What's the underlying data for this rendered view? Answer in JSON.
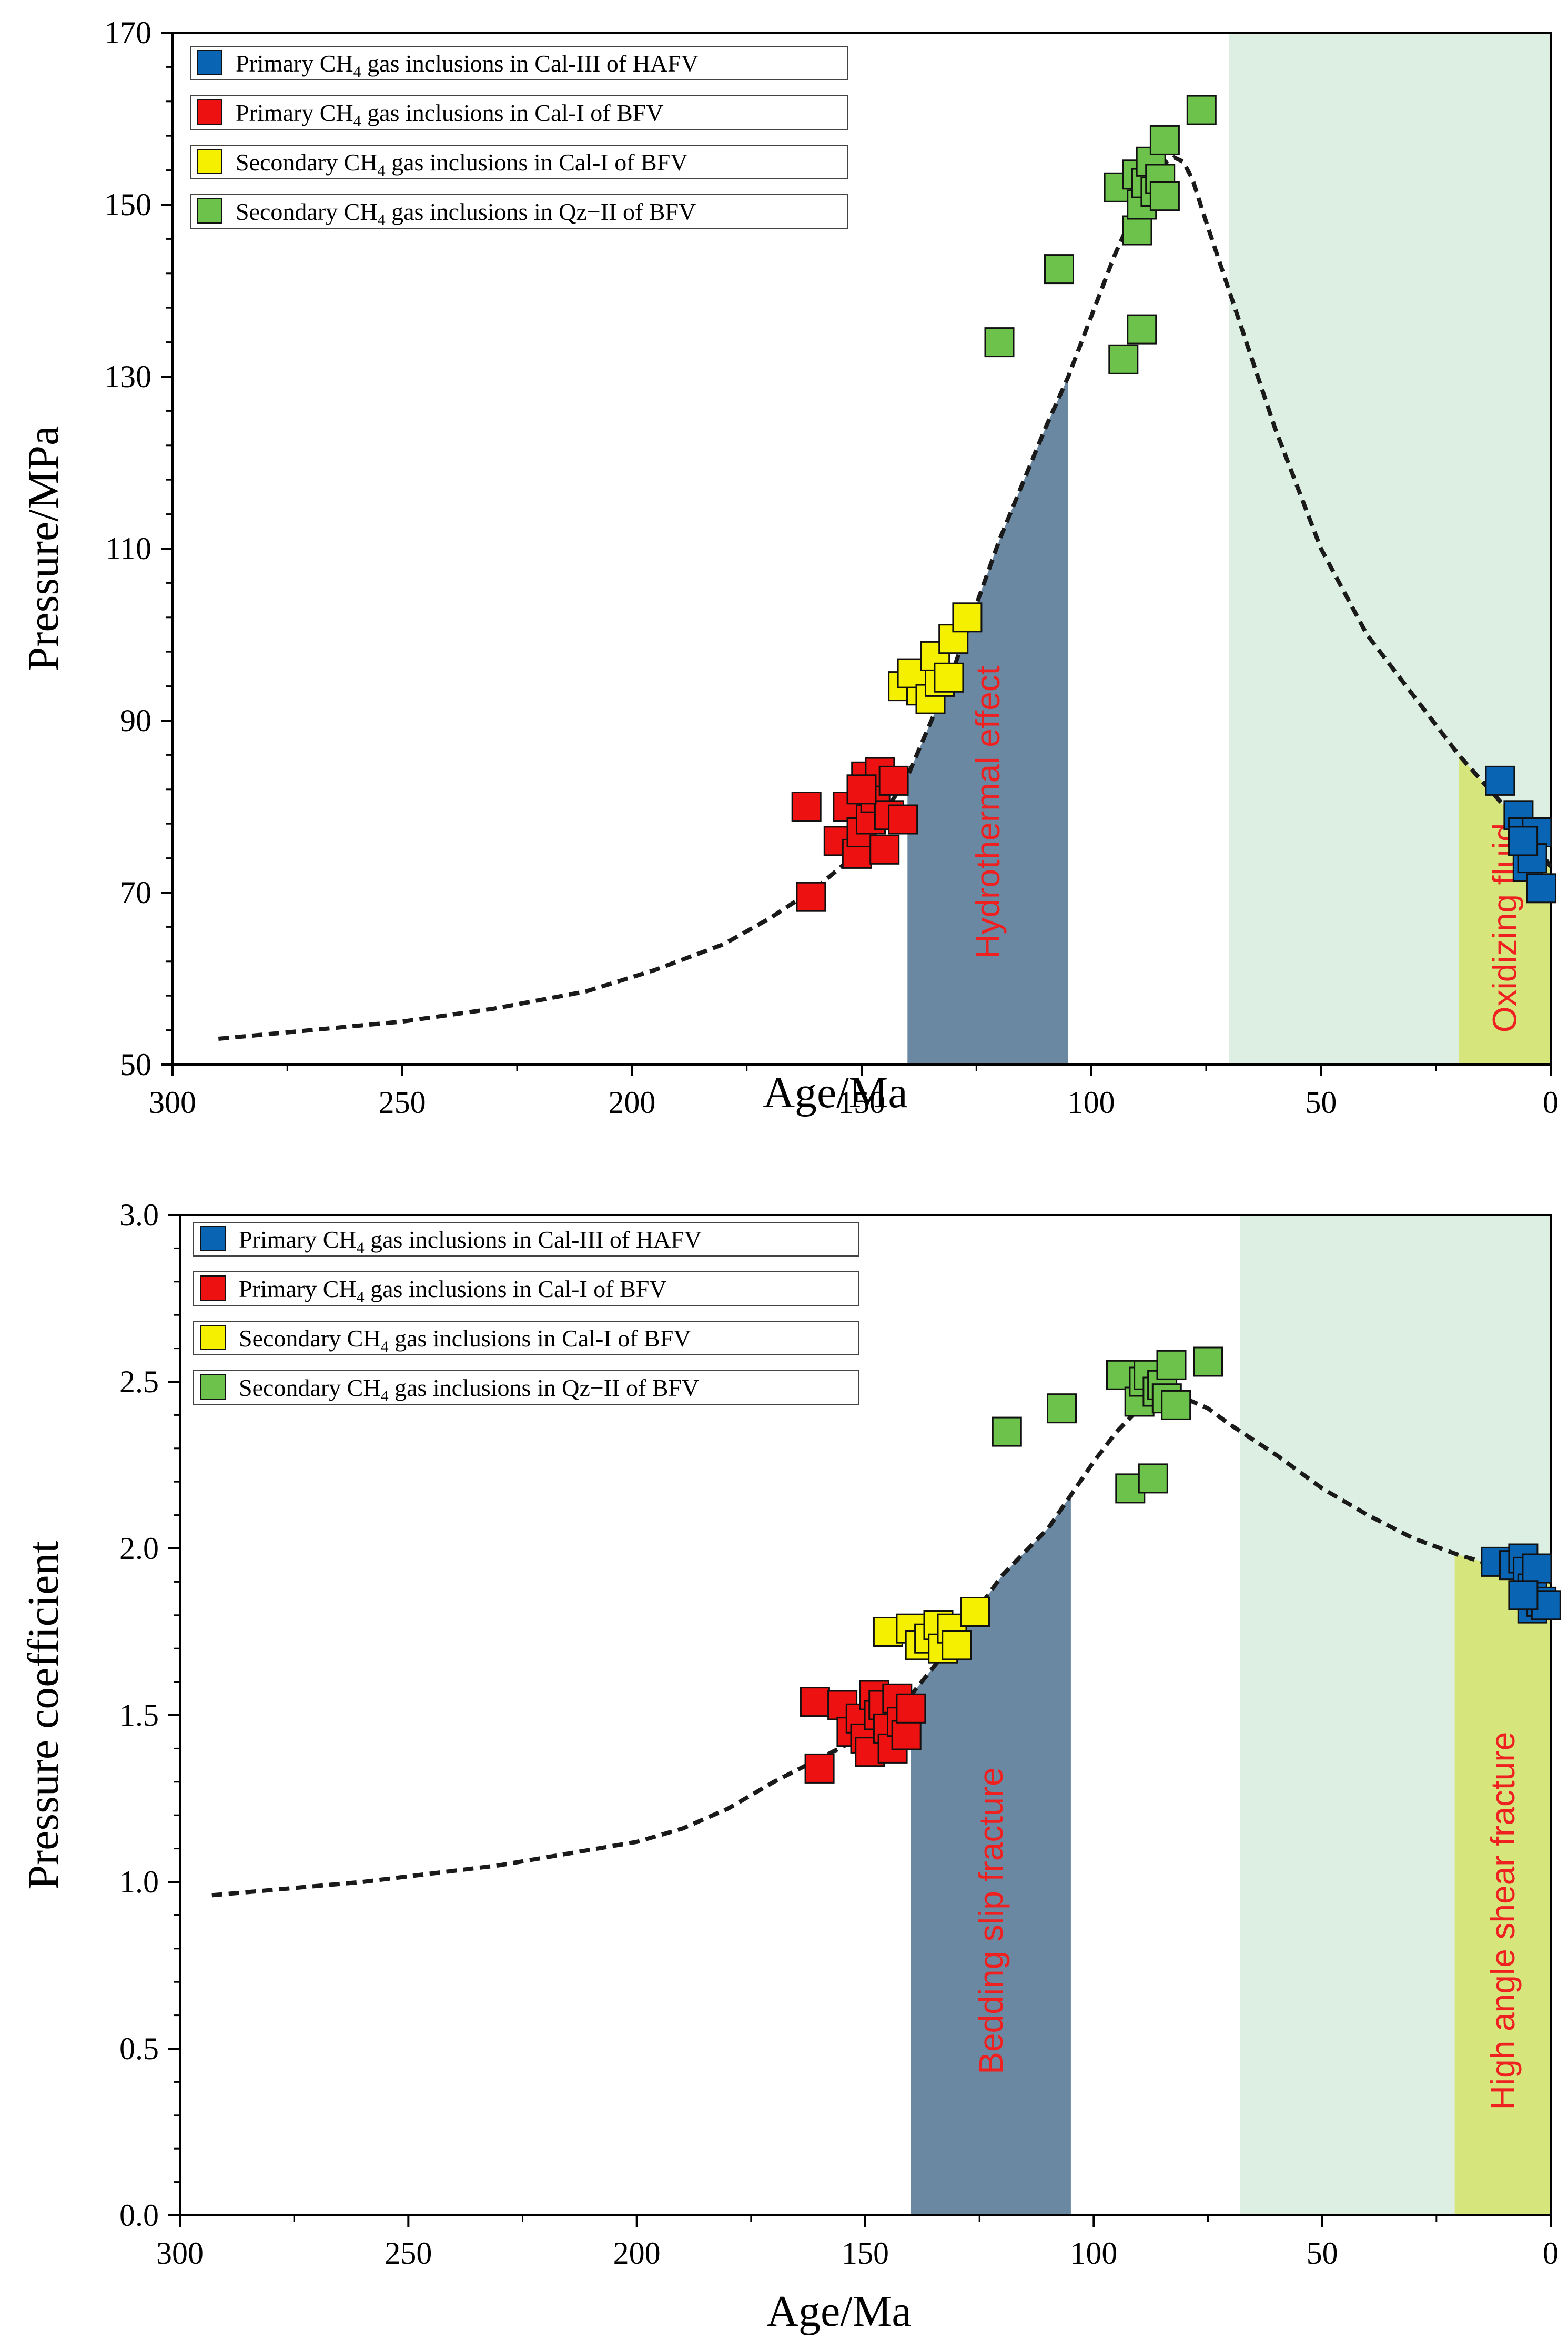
{
  "colors": {
    "blue": "#0a64b4",
    "red": "#ee1111",
    "yellow": "#f5f000",
    "green": "#6cc24a",
    "hydrothermal_fill": "#6b88a3",
    "light_green_fill": "#dcefe2",
    "yellowgreen_fill": "#d6e57c",
    "label_red": "#ee2020"
  },
  "legend": [
    {
      "prefix": "Primary CH",
      "sub": "4",
      "suffix": " gas inclusions in Cal-III of HAFV",
      "color_key": "blue"
    },
    {
      "prefix": "Primary CH",
      "sub": "4",
      "suffix": " gas inclusions in Cal-I of BFV",
      "color_key": "red"
    },
    {
      "prefix": "Secondary CH",
      "sub": "4",
      "suffix": " gas inclusions in Cal-I of BFV",
      "color_key": "yellow"
    },
    {
      "prefix": "Secondary CH",
      "sub": "4",
      "suffix": " gas inclusions in Qz−II of BFV",
      "color_key": "green"
    }
  ],
  "chart_data": [
    {
      "type": "scatter",
      "xlabel": "Age/Ma",
      "ylabel": "Pressure/MPa",
      "xlim": [
        300,
        0
      ],
      "ylim": [
        50,
        170
      ],
      "xticks": [
        300,
        250,
        200,
        150,
        100,
        50,
        0
      ],
      "yticks": [
        50,
        70,
        90,
        110,
        130,
        150,
        170
      ],
      "regions": [
        {
          "name": "hydrothermal",
          "x": [
            140,
            105
          ],
          "top": "curve",
          "color_key": "hydrothermal_fill",
          "label": "Hydrothermal  effect"
        },
        {
          "name": "late-stage",
          "x": [
            70,
            0
          ],
          "top": "axis",
          "color_key": "light_green_fill",
          "label": ""
        },
        {
          "name": "oxidizing",
          "x": [
            20,
            0
          ],
          "top": "curve",
          "color_key": "yellowgreen_fill",
          "label": "Oxidizing fluid"
        }
      ],
      "trend_curve": {
        "x": [
          290,
          250,
          230,
          210,
          195,
          180,
          170,
          160,
          150,
          140,
          130,
          120,
          110,
          105,
          100,
          95,
          90,
          85,
          82,
          80,
          78,
          75,
          70,
          60,
          50,
          40,
          30,
          20,
          10,
          5,
          0
        ],
        "y": [
          53,
          55,
          56.5,
          58.5,
          61,
          64,
          67,
          70.5,
          75,
          83.5,
          96,
          111,
          124,
          130,
          137,
          144,
          150,
          154.5,
          155.5,
          155,
          153,
          148,
          140,
          124,
          110,
          100,
          93,
          86,
          80,
          77,
          73
        ]
      },
      "series": [
        {
          "name": "Primary CH4 gas inclusions in Cal-III of HAFV",
          "color_key": "blue",
          "points": [
            [
              11,
              83
            ],
            [
              7,
              79
            ],
            [
              6,
              77
            ],
            [
              5,
              73
            ],
            [
              3,
              77
            ],
            [
              4,
              74
            ],
            [
              2,
              70.5
            ],
            [
              6,
              76
            ]
          ]
        },
        {
          "name": "Primary CH4 gas inclusions in Cal-I of BFV",
          "color_key": "red",
          "points": [
            [
              162,
              80
            ],
            [
              161,
              69.5
            ],
            [
              155,
              76
            ],
            [
              153,
              80
            ],
            [
              151,
              74.5
            ],
            [
              150,
              77
            ],
            [
              149,
              83.5
            ],
            [
              148,
              78.5
            ],
            [
              147,
              81
            ],
            [
              146,
              84
            ],
            [
              145,
              75
            ],
            [
              144,
              79
            ],
            [
              143,
              83
            ],
            [
              141,
              78.5
            ],
            [
              150,
              82
            ]
          ]
        },
        {
          "name": "Secondary CH4 gas inclusions in Cal-I of BFV",
          "color_key": "yellow",
          "points": [
            [
              141,
              94
            ],
            [
              137,
              93.5
            ],
            [
              139,
              95.5
            ],
            [
              135,
              92.5
            ],
            [
              133,
              94.5
            ],
            [
              134,
              97.5
            ],
            [
              131,
              95
            ],
            [
              130,
              99.5
            ],
            [
              127,
              102
            ]
          ]
        },
        {
          "name": "Secondary CH4 gas inclusions in Qz−II of BFV",
          "color_key": "green",
          "points": [
            [
              120,
              134
            ],
            [
              107,
              142.5
            ],
            [
              94,
              152
            ],
            [
              93,
              132
            ],
            [
              90,
              147
            ],
            [
              89,
              135.5
            ],
            [
              90,
              153.5
            ],
            [
              89,
              150
            ],
            [
              88,
              152.5
            ],
            [
              87,
              155
            ],
            [
              86,
              151.5
            ],
            [
              85,
              153
            ],
            [
              84,
              151
            ],
            [
              84,
              157.5
            ],
            [
              76,
              161
            ]
          ]
        }
      ]
    },
    {
      "type": "scatter",
      "xlabel": "Age/Ma",
      "ylabel": "Pressure coefficient",
      "xlim": [
        300,
        0
      ],
      "ylim": [
        0.0,
        3.0
      ],
      "xticks": [
        300,
        250,
        200,
        150,
        100,
        50,
        0
      ],
      "yticks": [
        "0.0",
        "0.5",
        "1.0",
        "1.5",
        "2.0",
        "2.5",
        "3.0"
      ],
      "regions": [
        {
          "name": "bedding",
          "x": [
            140,
            105
          ],
          "top": "curve",
          "color_key": "hydrothermal_fill",
          "label": "Bedding slip fracture"
        },
        {
          "name": "late-stage",
          "x": [
            68,
            0
          ],
          "top": "axis",
          "color_key": "light_green_fill",
          "label": ""
        },
        {
          "name": "high-angle",
          "x": [
            21,
            0
          ],
          "top": "curve",
          "color_key": "yellowgreen_fill",
          "label": "High angle shear fracture"
        }
      ],
      "trend_curve": {
        "x": [
          293,
          260,
          230,
          200,
          190,
          180,
          170,
          160,
          150,
          140,
          130,
          120,
          110,
          105,
          100,
          95,
          90,
          85,
          82,
          80,
          75,
          70,
          60,
          50,
          40,
          30,
          20,
          10,
          5,
          0
        ],
        "y": [
          0.96,
          1.0,
          1.05,
          1.12,
          1.16,
          1.22,
          1.3,
          1.37,
          1.44,
          1.56,
          1.73,
          1.92,
          2.06,
          2.16,
          2.26,
          2.35,
          2.42,
          2.45,
          2.46,
          2.45,
          2.42,
          2.37,
          2.28,
          2.18,
          2.1,
          2.03,
          1.98,
          1.94,
          1.92,
          1.9
        ]
      },
      "series": [
        {
          "name": "Primary CH4 gas inclusions in Cal-III of HAFV",
          "color_key": "blue",
          "points": [
            [
              12,
              1.96
            ],
            [
              8,
              1.95
            ],
            [
              6,
              1.97
            ],
            [
              5,
              1.93
            ],
            [
              4,
              1.88
            ],
            [
              3,
              1.94
            ],
            [
              4,
              1.82
            ],
            [
              2,
              1.84
            ],
            [
              1,
              1.83
            ],
            [
              6,
              1.86
            ]
          ]
        },
        {
          "name": "Primary CH4 gas inclusions in Cal-I of BFV",
          "color_key": "red",
          "points": [
            [
              161,
              1.54
            ],
            [
              160,
              1.34
            ],
            [
              155,
              1.53
            ],
            [
              153,
              1.45
            ],
            [
              151,
              1.49
            ],
            [
              150,
              1.43
            ],
            [
              149,
              1.39
            ],
            [
              148,
              1.56
            ],
            [
              147,
              1.5
            ],
            [
              146,
              1.53
            ],
            [
              145,
              1.46
            ],
            [
              144,
              1.4
            ],
            [
              143,
              1.55
            ],
            [
              142,
              1.48
            ],
            [
              141,
              1.44
            ],
            [
              140,
              1.52
            ]
          ]
        },
        {
          "name": "Secondary CH4 gas inclusions in Cal-I of BFV",
          "color_key": "yellow",
          "points": [
            [
              145,
              1.75
            ],
            [
              140,
              1.76
            ],
            [
              138,
              1.71
            ],
            [
              136,
              1.73
            ],
            [
              134,
              1.77
            ],
            [
              133,
              1.7
            ],
            [
              131,
              1.76
            ],
            [
              130,
              1.71
            ],
            [
              126,
              1.81
            ]
          ]
        },
        {
          "name": "Secondary CH4 gas inclusions in Qz−II of BFV",
          "color_key": "green",
          "points": [
            [
              119,
              2.35
            ],
            [
              107,
              2.42
            ],
            [
              94,
              2.52
            ],
            [
              92,
              2.18
            ],
            [
              90,
              2.44
            ],
            [
              89,
              2.5
            ],
            [
              88,
              2.52
            ],
            [
              87,
              2.21
            ],
            [
              86,
              2.47
            ],
            [
              85,
              2.49
            ],
            [
              84,
              2.45
            ],
            [
              83,
              2.55
            ],
            [
              82,
              2.43
            ],
            [
              75,
              2.56
            ]
          ]
        }
      ]
    }
  ]
}
